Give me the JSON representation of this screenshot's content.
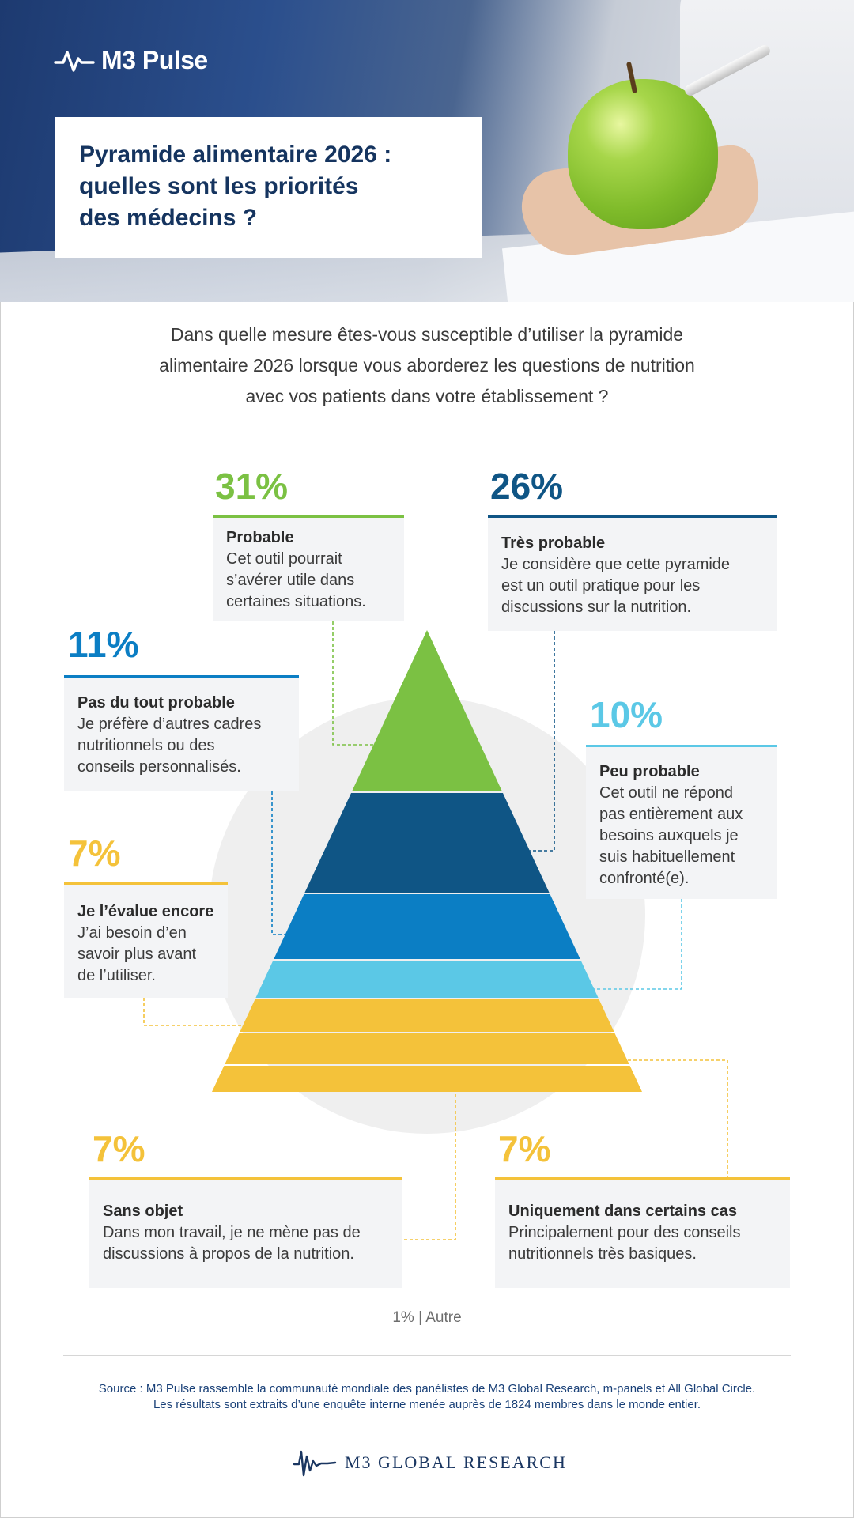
{
  "brand": {
    "name": "M3 Pulse",
    "icon": "pulse-wave-icon"
  },
  "title_lines": [
    "Pyramide alimentaire 2026 :",
    "quelles sont les priorités",
    "des médecins ?"
  ],
  "question_lines": [
    "Dans quelle mesure êtes-vous susceptible d’utiliser la pyramide",
    "alimentaire 2026 lorsque vous aborderez les questions de nutrition",
    "avec vos patients dans votre établissement ?"
  ],
  "chart_data": {
    "type": "pyramid",
    "unit": "%",
    "segments": [
      {
        "key": "probable",
        "value": 31,
        "pct_label": "31%",
        "label": "Probable",
        "description_lines": [
          "Cet outil pourrait",
          "s’avérer utile dans",
          "certaines situations."
        ],
        "color": "#7bc143"
      },
      {
        "key": "tres_probable",
        "value": 26,
        "pct_label": "26%",
        "label": "Très probable",
        "description_lines": [
          "Je considère que cette pyramide",
          "est un outil pratique pour les",
          "discussions sur la nutrition."
        ],
        "color": "#0f5585"
      },
      {
        "key": "pas_du_tout",
        "value": 11,
        "pct_label": "11%",
        "label": "Pas du tout probable",
        "description_lines": [
          "Je préfère d’autres cadres",
          "nutritionnels ou des",
          "conseils personnalisés."
        ],
        "color": "#0b7ec4"
      },
      {
        "key": "peu_probable",
        "value": 10,
        "pct_label": "10%",
        "label": "Peu probable",
        "description_lines": [
          "Cet outil ne répond",
          "pas entièrement aux",
          "besoins auxquels je",
          "suis habituellement",
          "confronté(e)."
        ],
        "color": "#5bc8e6"
      },
      {
        "key": "evalue_encore",
        "value": 7,
        "pct_label": "7%",
        "label": "Je l’évalue encore",
        "description_lines": [
          "J’ai besoin d’en",
          "savoir plus avant",
          "de l’utiliser."
        ],
        "color": "#f4c23a"
      },
      {
        "key": "certains_cas",
        "value": 7,
        "pct_label": "7%",
        "label": "Uniquement dans certains cas",
        "description_lines": [
          "Principalement pour des conseils",
          "nutritionnels très basiques."
        ],
        "color": "#f4c23a"
      },
      {
        "key": "sans_objet",
        "value": 7,
        "pct_label": "7%",
        "label": "Sans objet",
        "description_lines": [
          "Dans mon travail, je ne mène pas de",
          "discussions à propos de la nutrition."
        ],
        "color": "#f4c23a"
      }
    ],
    "other": {
      "value": 1,
      "label": "1% | Autre"
    }
  },
  "source_lines": [
    "Source : M3 Pulse rassemble la communauté mondiale des panélistes de M3 Global Research, m-panels et All Global Circle.",
    "Les résultats sont extraits d’une enquête interne menée auprès de 1824 membres dans le monde entier."
  ],
  "footer_brand": {
    "name": "M3 GLOBAL RESEARCH",
    "icon": "signal-wave-icon"
  }
}
